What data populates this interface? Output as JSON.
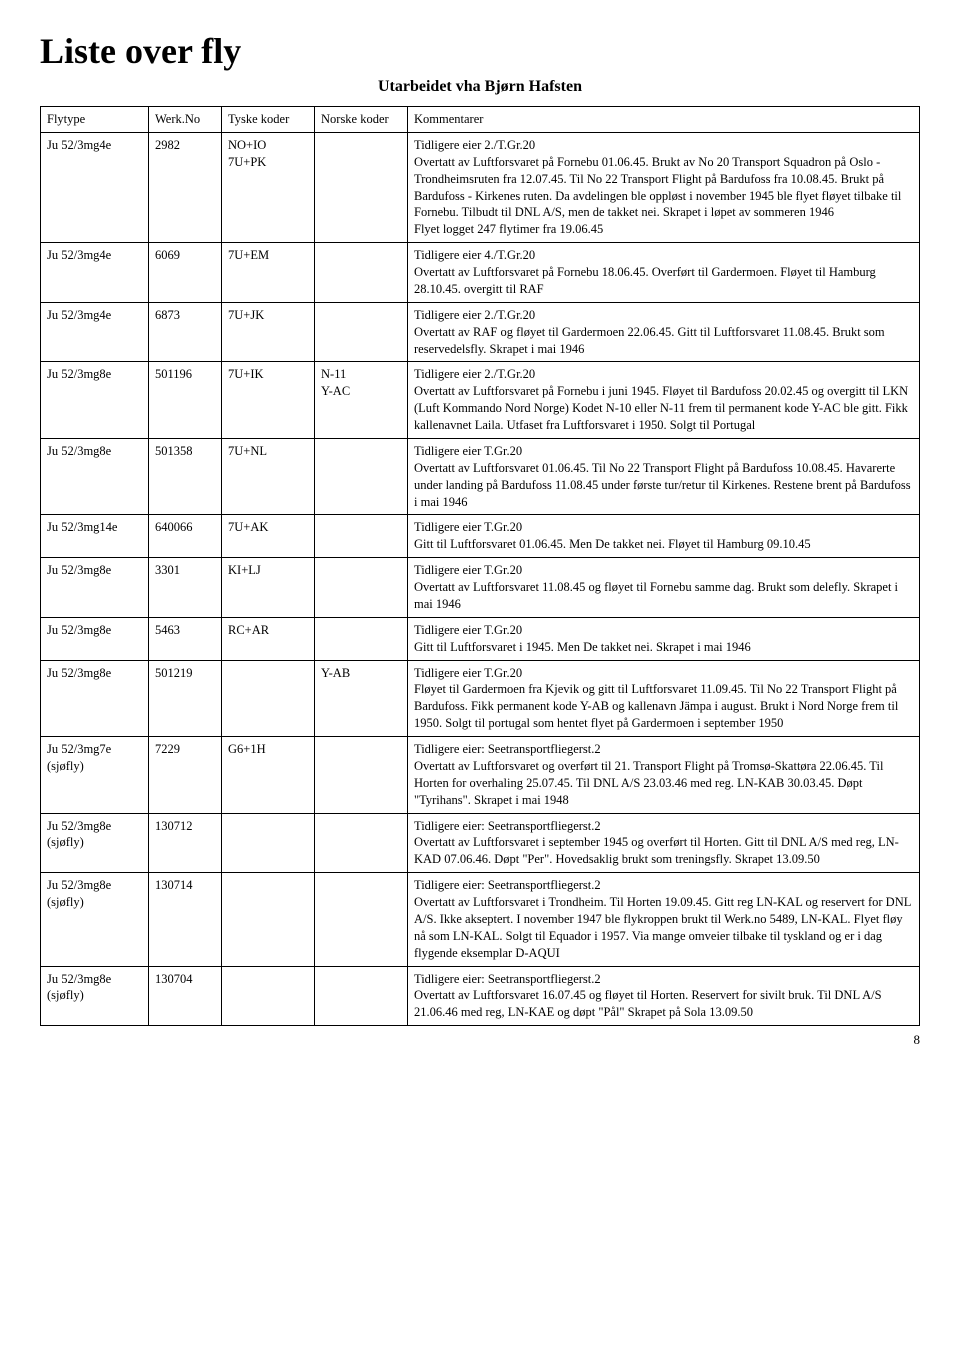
{
  "title": "Liste over fly",
  "subtitle": "Utarbeidet vha Bjørn Hafsten",
  "page_number": "8",
  "columns": {
    "flytype": "Flytype",
    "werkno": "Werk.No",
    "tyske": "Tyske koder",
    "norske": "Norske koder",
    "kommentarer": "Kommentarer"
  },
  "rows": [
    {
      "flytype": "Ju 52/3mg4e",
      "werkno": "2982",
      "tyske": "NO+IO\n7U+PK",
      "norske": "",
      "komm": "Tidligere eier 2./T.Gr.20\nOvertatt av Luftforsvaret på Fornebu 01.06.45. Brukt av No 20 Transport Squadron på Oslo - Trondheimsruten fra 12.07.45. Til No 22 Transport Flight på Bardufoss fra 10.08.45. Brukt på Bardufoss - Kirkenes ruten. Da avdelingen ble oppløst i november 1945 ble flyet fløyet tilbake til Fornebu. Tilbudt til DNL A/S, men de takket nei. Skrapet i løpet av sommeren 1946\nFlyet logget 247 flytimer fra 19.06.45"
    },
    {
      "flytype": "Ju 52/3mg4e",
      "werkno": "6069",
      "tyske": "7U+EM",
      "norske": "",
      "komm": "Tidligere eier 4./T.Gr.20\nOvertatt av Luftforsvaret på Fornebu 18.06.45. Overført til Gardermoen. Fløyet til Hamburg 28.10.45. overgitt til RAF"
    },
    {
      "flytype": "Ju 52/3mg4e",
      "werkno": "6873",
      "tyske": "7U+JK",
      "norske": "",
      "komm": "Tidligere eier 2./T.Gr.20\nOvertatt av RAF og fløyet til Gardermoen 22.06.45. Gitt til Luftforsvaret 11.08.45. Brukt som reservedelsfly. Skrapet i mai 1946"
    },
    {
      "flytype": "Ju 52/3mg8e",
      "werkno": "501196",
      "tyske": "7U+IK",
      "norske": "N-11\nY-AC",
      "komm": "Tidligere eier 2./T.Gr.20\nOvertatt av Luftforsvaret på Fornebu i juni 1945. Fløyet til Bardufoss 20.02.45 og overgitt til LKN (Luft Kommando Nord Norge) Kodet N-10 eller N-11 frem til permanent kode Y-AC ble gitt. Fikk kallenavnet Laila. Utfaset fra Luftforsvaret i 1950. Solgt til Portugal"
    },
    {
      "flytype": "Ju 52/3mg8e",
      "werkno": "501358",
      "tyske": "7U+NL",
      "norske": "",
      "komm": "Tidligere eier T.Gr.20\nOvertatt av Luftforsvaret 01.06.45. Til No 22 Transport Flight på Bardufoss 10.08.45. Havarerte under landing på Bardufoss 11.08.45 under første tur/retur til Kirkenes. Restene brent på Bardufoss i mai 1946"
    },
    {
      "flytype": "Ju 52/3mg14e",
      "werkno": "640066",
      "tyske": "7U+AK",
      "norske": "",
      "komm": "Tidligere eier T.Gr.20\nGitt til Luftforsvaret 01.06.45. Men De takket nei. Fløyet til Hamburg 09.10.45"
    },
    {
      "flytype": "Ju 52/3mg8e",
      "werkno": "3301",
      "tyske": "KI+LJ",
      "norske": "",
      "komm": "Tidligere eier T.Gr.20\nOvertatt av Luftforsvaret 11.08.45 og fløyet til Fornebu samme dag. Brukt som delefly. Skrapet i mai 1946"
    },
    {
      "flytype": "Ju 52/3mg8e",
      "werkno": "5463",
      "tyske": "RC+AR",
      "norske": "",
      "komm": "Tidligere eier T.Gr.20\nGitt til Luftforsvaret i 1945. Men De takket nei. Skrapet i mai 1946"
    },
    {
      "flytype": "Ju 52/3mg8e",
      "werkno": "501219",
      "tyske": "",
      "norske": "Y-AB",
      "komm": "Tidligere eier T.Gr.20\nFløyet til Gardermoen fra Kjevik og gitt til Luftforsvaret 11.09.45. Til No 22 Transport Flight på Bardufoss. Fikk permanent kode Y-AB og kallenavn Jämpa i august. Brukt i Nord Norge frem til 1950. Solgt til portugal som hentet flyet på Gardermoen i september 1950"
    },
    {
      "flytype": "Ju 52/3mg7e\n(sjøfly)",
      "werkno": "7229",
      "tyske": "G6+1H",
      "norske": "",
      "komm": "Tidligere eier: Seetransportfliegerst.2\nOvertatt av Luftforsvaret og overført til 21. Transport Flight på Tromsø-Skattøra 22.06.45. Til Horten for overhaling 25.07.45. Til DNL A/S 23.03.46 med reg. LN-KAB 30.03.45. Døpt \"Tyrihans\". Skrapet i mai 1948"
    },
    {
      "flytype": "Ju 52/3mg8e\n(sjøfly)",
      "werkno": "130712",
      "tyske": "",
      "norske": "",
      "komm": "Tidligere eier: Seetransportfliegerst.2\nOvertatt av Luftforsvaret i september 1945 og overført til Horten. Gitt til DNL A/S med reg, LN-KAD 07.06.46. Døpt \"Per\". Hovedsaklig brukt som treningsfly. Skrapet 13.09.50"
    },
    {
      "flytype": "Ju 52/3mg8e\n(sjøfly)",
      "werkno": "130714",
      "tyske": "",
      "norske": "",
      "komm": "Tidligere eier: Seetransportfliegerst.2\nOvertatt av Luftforsvaret i Trondheim. Til Horten 19.09.45. Gitt reg LN-KAL og reservert for DNL A/S. Ikke akseptert. I november 1947 ble flykroppen brukt til Werk.no 5489, LN-KAL. Flyet fløy nå som LN-KAL. Solgt til Equador i 1957. Via mange omveier tilbake til tyskland og er i dag flygende eksemplar D-AQUI"
    },
    {
      "flytype": "Ju 52/3mg8e\n(sjøfly)",
      "werkno": "130704",
      "tyske": "",
      "norske": "",
      "komm": "Tidligere eier: Seetransportfliegerst.2\nOvertatt av Luftforsvaret 16.07.45 og fløyet til Horten. Reservert for sivilt bruk. Til DNL A/S 21.06.46 med reg, LN-KAE og døpt \"Pål\" Skrapet på Sola 13.09.50"
    }
  ]
}
